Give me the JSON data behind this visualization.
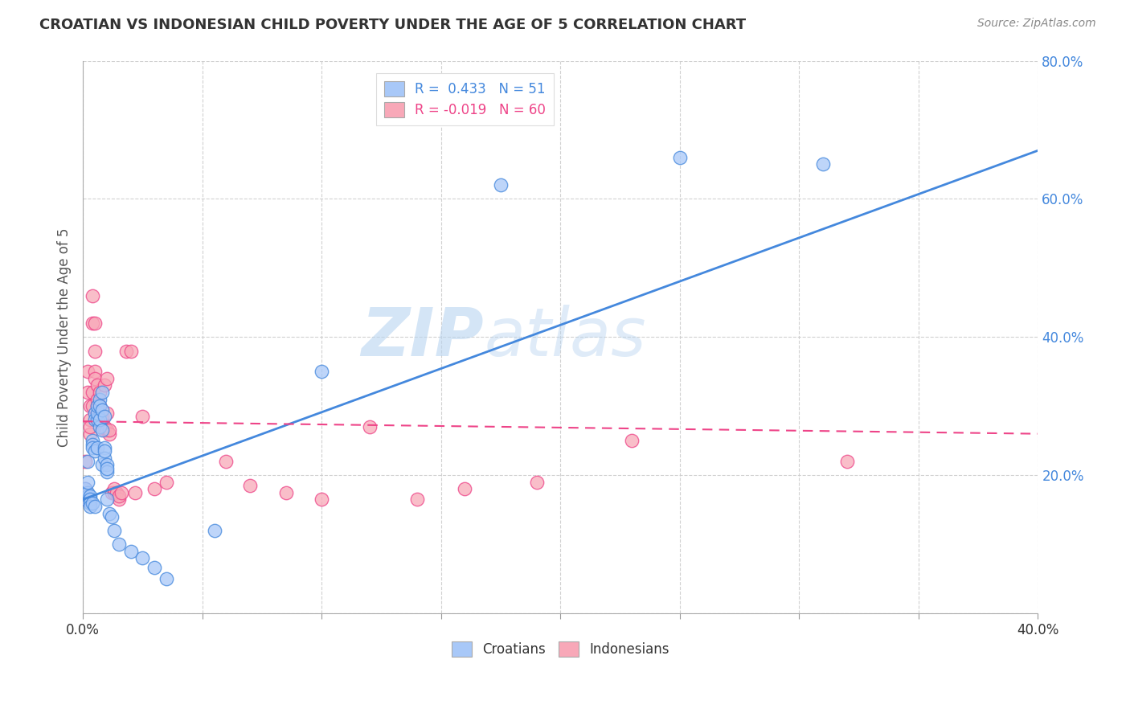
{
  "title": "CROATIAN VS INDONESIAN CHILD POVERTY UNDER THE AGE OF 5 CORRELATION CHART",
  "source": "Source: ZipAtlas.com",
  "ylabel": "Child Poverty Under the Age of 5",
  "xlabel_croatians": "Croatians",
  "xlabel_indonesians": "Indonesians",
  "xmin": 0.0,
  "xmax": 0.4,
  "ymin": 0.0,
  "ymax": 0.8,
  "r_croatian": 0.433,
  "n_croatian": 51,
  "r_indonesian": -0.019,
  "n_indonesian": 60,
  "color_croatian": "#a8c8f8",
  "color_indonesian": "#f8a8b8",
  "line_croatian": "#4488dd",
  "line_indonesian": "#ee4488",
  "watermark_zip": "ZIP",
  "watermark_atlas": "atlas",
  "background_color": "#ffffff",
  "grid_color": "#cccccc",
  "croatian_scatter": [
    [
      0.001,
      0.165
    ],
    [
      0.001,
      0.18
    ],
    [
      0.002,
      0.17
    ],
    [
      0.002,
      0.175
    ],
    [
      0.002,
      0.19
    ],
    [
      0.002,
      0.22
    ],
    [
      0.003,
      0.17
    ],
    [
      0.003,
      0.165
    ],
    [
      0.003,
      0.16
    ],
    [
      0.003,
      0.155
    ],
    [
      0.004,
      0.25
    ],
    [
      0.004,
      0.245
    ],
    [
      0.004,
      0.24
    ],
    [
      0.004,
      0.16
    ],
    [
      0.005,
      0.29
    ],
    [
      0.005,
      0.28
    ],
    [
      0.005,
      0.235
    ],
    [
      0.005,
      0.155
    ],
    [
      0.006,
      0.24
    ],
    [
      0.006,
      0.28
    ],
    [
      0.006,
      0.29
    ],
    [
      0.006,
      0.3
    ],
    [
      0.007,
      0.27
    ],
    [
      0.007,
      0.31
    ],
    [
      0.007,
      0.3
    ],
    [
      0.007,
      0.28
    ],
    [
      0.008,
      0.295
    ],
    [
      0.008,
      0.265
    ],
    [
      0.008,
      0.215
    ],
    [
      0.008,
      0.32
    ],
    [
      0.009,
      0.285
    ],
    [
      0.009,
      0.24
    ],
    [
      0.009,
      0.225
    ],
    [
      0.009,
      0.235
    ],
    [
      0.01,
      0.215
    ],
    [
      0.01,
      0.205
    ],
    [
      0.01,
      0.21
    ],
    [
      0.01,
      0.165
    ],
    [
      0.011,
      0.145
    ],
    [
      0.012,
      0.14
    ],
    [
      0.013,
      0.12
    ],
    [
      0.015,
      0.1
    ],
    [
      0.02,
      0.09
    ],
    [
      0.025,
      0.08
    ],
    [
      0.03,
      0.066
    ],
    [
      0.035,
      0.05
    ],
    [
      0.055,
      0.12
    ],
    [
      0.1,
      0.35
    ],
    [
      0.175,
      0.62
    ],
    [
      0.25,
      0.66
    ],
    [
      0.31,
      0.65
    ]
  ],
  "indonesian_scatter": [
    [
      0.001,
      0.165
    ],
    [
      0.001,
      0.22
    ],
    [
      0.001,
      0.18
    ],
    [
      0.002,
      0.17
    ],
    [
      0.002,
      0.35
    ],
    [
      0.002,
      0.32
    ],
    [
      0.003,
      0.3
    ],
    [
      0.003,
      0.28
    ],
    [
      0.003,
      0.26
    ],
    [
      0.003,
      0.27
    ],
    [
      0.004,
      0.32
    ],
    [
      0.004,
      0.3
    ],
    [
      0.004,
      0.42
    ],
    [
      0.004,
      0.46
    ],
    [
      0.005,
      0.42
    ],
    [
      0.005,
      0.38
    ],
    [
      0.005,
      0.35
    ],
    [
      0.005,
      0.34
    ],
    [
      0.006,
      0.33
    ],
    [
      0.006,
      0.3
    ],
    [
      0.006,
      0.28
    ],
    [
      0.006,
      0.31
    ],
    [
      0.007,
      0.32
    ],
    [
      0.007,
      0.3
    ],
    [
      0.007,
      0.29
    ],
    [
      0.007,
      0.28
    ],
    [
      0.008,
      0.285
    ],
    [
      0.008,
      0.27
    ],
    [
      0.008,
      0.28
    ],
    [
      0.009,
      0.33
    ],
    [
      0.009,
      0.265
    ],
    [
      0.009,
      0.27
    ],
    [
      0.01,
      0.34
    ],
    [
      0.01,
      0.265
    ],
    [
      0.01,
      0.29
    ],
    [
      0.011,
      0.26
    ],
    [
      0.011,
      0.265
    ],
    [
      0.012,
      0.175
    ],
    [
      0.013,
      0.175
    ],
    [
      0.013,
      0.18
    ],
    [
      0.014,
      0.175
    ],
    [
      0.015,
      0.165
    ],
    [
      0.015,
      0.17
    ],
    [
      0.016,
      0.175
    ],
    [
      0.018,
      0.38
    ],
    [
      0.02,
      0.38
    ],
    [
      0.022,
      0.175
    ],
    [
      0.025,
      0.285
    ],
    [
      0.03,
      0.18
    ],
    [
      0.035,
      0.19
    ],
    [
      0.06,
      0.22
    ],
    [
      0.07,
      0.185
    ],
    [
      0.085,
      0.175
    ],
    [
      0.1,
      0.165
    ],
    [
      0.12,
      0.27
    ],
    [
      0.14,
      0.165
    ],
    [
      0.16,
      0.18
    ],
    [
      0.19,
      0.19
    ],
    [
      0.23,
      0.25
    ],
    [
      0.32,
      0.22
    ]
  ],
  "line_croatian_y0": 0.165,
  "line_croatian_y1": 0.67,
  "line_indonesian_y0": 0.278,
  "line_indonesian_y1": 0.26
}
